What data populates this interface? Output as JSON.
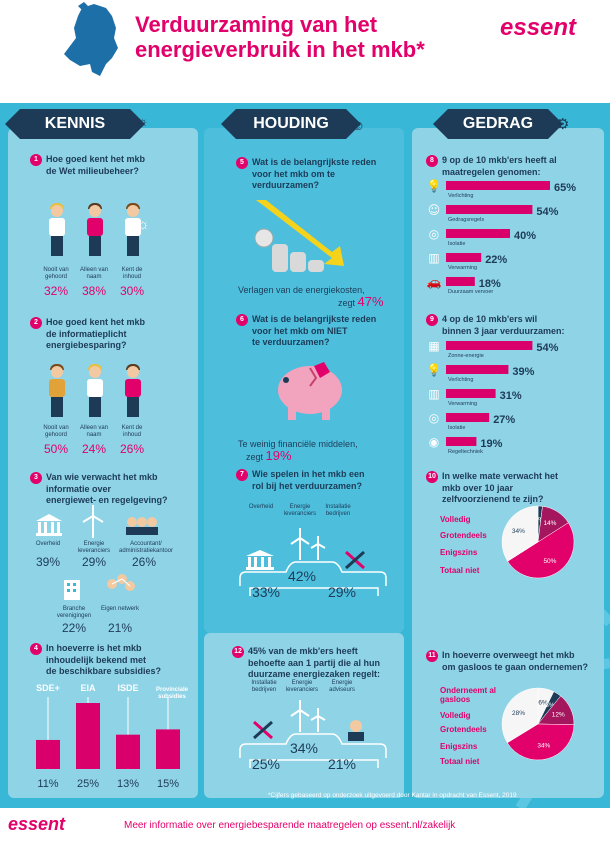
{
  "header": {
    "title_line1": "Verduurzaming van het",
    "title_line2": "energieverbruik in het mkb*",
    "logo": "essent"
  },
  "columns": {
    "kennis": "KENNIS",
    "houding": "HOUDING",
    "gedrag": "GEDRAG"
  },
  "q1": {
    "num": "1",
    "text_l1": "Hoe goed kent het mkb",
    "text_l2": "de Wet milieubeheer?",
    "items": [
      {
        "label": "Nooit van gehoord",
        "pct": "32%"
      },
      {
        "label": "Alleen van naam",
        "pct": "38%"
      },
      {
        "label": "Kent de inhoud",
        "pct": "30%"
      }
    ]
  },
  "q2": {
    "num": "2",
    "text_l1": "Hoe goed kent het mkb",
    "text_l2": "de informatieplicht",
    "text_l3": "energiebesparing?",
    "items": [
      {
        "label": "Nooit van gehoord",
        "pct": "50%"
      },
      {
        "label": "Alleen van naam",
        "pct": "24%"
      },
      {
        "label": "Kent de inhoud",
        "pct": "26%"
      }
    ]
  },
  "q3": {
    "num": "3",
    "text_l1": "Van wie verwacht het mkb",
    "text_l2": "informatie over",
    "text_l3": "energiewet- en regelgeving?",
    "items": [
      {
        "label": "Overheid",
        "pct": "39%"
      },
      {
        "label": "Energie leveranciers",
        "pct": "29%"
      },
      {
        "label": "Accountant/ administratiekantoor",
        "pct": "26%"
      },
      {
        "label": "Branche verenigingen",
        "pct": "22%"
      },
      {
        "label": "Eigen netwerk",
        "pct": "21%"
      }
    ]
  },
  "q4": {
    "num": "4",
    "text_l1": "In hoeverre is het mkb",
    "text_l2": "inhoudelijk bekend met",
    "text_l3": "de beschikbare subsidies?",
    "chart_data": {
      "type": "bar",
      "categories": [
        "SDE+",
        "EIA",
        "ISDE",
        "Provinciale subsidies"
      ],
      "values": [
        11,
        25,
        13,
        15
      ],
      "value_labels": [
        "11%",
        "25%",
        "13%",
        "15%"
      ]
    }
  },
  "q5": {
    "num": "5",
    "text_l1": "Wat is de belangrijkste reden",
    "text_l2": "voor het mkb om te",
    "text_l3": "verduurzamen?",
    "answer_l1": "Verlagen van de energiekosten,",
    "answer_l2": "zegt",
    "answer_pct": "47%"
  },
  "q6": {
    "num": "6",
    "text_l1": "Wat is de belangrijkste reden",
    "text_l2": "voor het mkb om NIET",
    "text_l3": "te verduurzamen?",
    "answer_l1": "Te weinig financiële middelen,",
    "answer_l2": "zegt",
    "answer_pct": "19%"
  },
  "q7": {
    "num": "7",
    "text_l1": "Wie spelen in het mkb een",
    "text_l2": "rol bij het verduurzamen?",
    "items": [
      {
        "label": "Overheid",
        "pct": "33%"
      },
      {
        "label": "Energie leveranciers",
        "pct": "42%"
      },
      {
        "label": "Installatie bedrijven",
        "pct": "29%"
      }
    ]
  },
  "q12": {
    "num": "12",
    "text_l1": "45% van de mkb'ers heeft",
    "text_l2": "behoefte aan 1 partij die al hun",
    "text_l3": "duurzame energiezaken regelt:",
    "items": [
      {
        "label": "Installatie bedrijven",
        "pct": "25%"
      },
      {
        "label": "Energie leveranciers",
        "pct": "34%"
      },
      {
        "label": "Energie adviseurs",
        "pct": "21%"
      }
    ]
  },
  "q8": {
    "num": "8",
    "text_l1": "9 op de 10 mkb'ers heeft al",
    "text_l2": "maatregelen genomen:",
    "chart_data": {
      "type": "bar",
      "categories": [
        "Verlichting",
        "Gedragsregels",
        "Isolatie",
        "Verwarming",
        "Duurzaam vervoer"
      ],
      "values": [
        65,
        54,
        40,
        22,
        18
      ],
      "value_labels": [
        "65%",
        "54%",
        "40%",
        "22%",
        "18%"
      ],
      "icons": [
        "bulb-icon",
        "head-icon",
        "insulation-icon",
        "radiator-icon",
        "car-icon"
      ]
    }
  },
  "q9": {
    "num": "9",
    "text_l1": "4 op de 10 mkb'ers wil",
    "text_l2": "binnen 3 jaar verduurzamen:",
    "chart_data": {
      "type": "bar",
      "categories": [
        "Zonne-energie",
        "Verlichting",
        "Verwarming",
        "Isolatie",
        "Regeltechniek"
      ],
      "values": [
        54,
        39,
        31,
        27,
        19
      ],
      "value_labels": [
        "54%",
        "39%",
        "31%",
        "27%",
        "19%"
      ],
      "icons": [
        "solar-panel-icon",
        "bulb-icon",
        "radiator-icon",
        "insulation-icon",
        "thermostat-icon"
      ]
    }
  },
  "q10": {
    "num": "10",
    "text_l1": "In welke mate verwacht het",
    "text_l2": "mkb over 10 jaar",
    "text_l3": "zelfvoorzienend te zijn?",
    "chart_data": {
      "type": "pie",
      "categories": [
        "Volledig",
        "Grotendeels",
        "Enigszins",
        "Totaal niet"
      ],
      "values": [
        2,
        14,
        50,
        34
      ],
      "value_labels": [
        "2%",
        "14%",
        "50%",
        "34%"
      ],
      "colors": [
        "#1d3b57",
        "#a4165e",
        "#e2006a",
        "#f6f6f6"
      ]
    }
  },
  "q11": {
    "num": "11",
    "text_l1": "In hoeverre overweegt het mkb",
    "text_l2": "om gasloos te gaan ondernemen?",
    "chart_data": {
      "type": "pie",
      "categories": [
        "Onderneemt al gasloos",
        "Volledig",
        "Grotendeels",
        "Enigszins",
        "Totaal niet"
      ],
      "values": [
        6,
        3,
        12,
        34,
        28
      ],
      "value_labels": [
        "6%",
        "3%",
        "12%",
        "34%",
        "28%"
      ],
      "colors": [
        "#f6f6f6",
        "#1d3b57",
        "#a4165e",
        "#e2006a",
        "#f6f6f6"
      ]
    }
  },
  "footnote": "*Cijfers gebaseerd op onderzoek uitgevoerd door Kantar in opdracht van Essent, 2019",
  "footer": {
    "logo": "essent",
    "text": "Meer informatie over energiebesparende maatregelen op essent.nl/zakelijk"
  }
}
